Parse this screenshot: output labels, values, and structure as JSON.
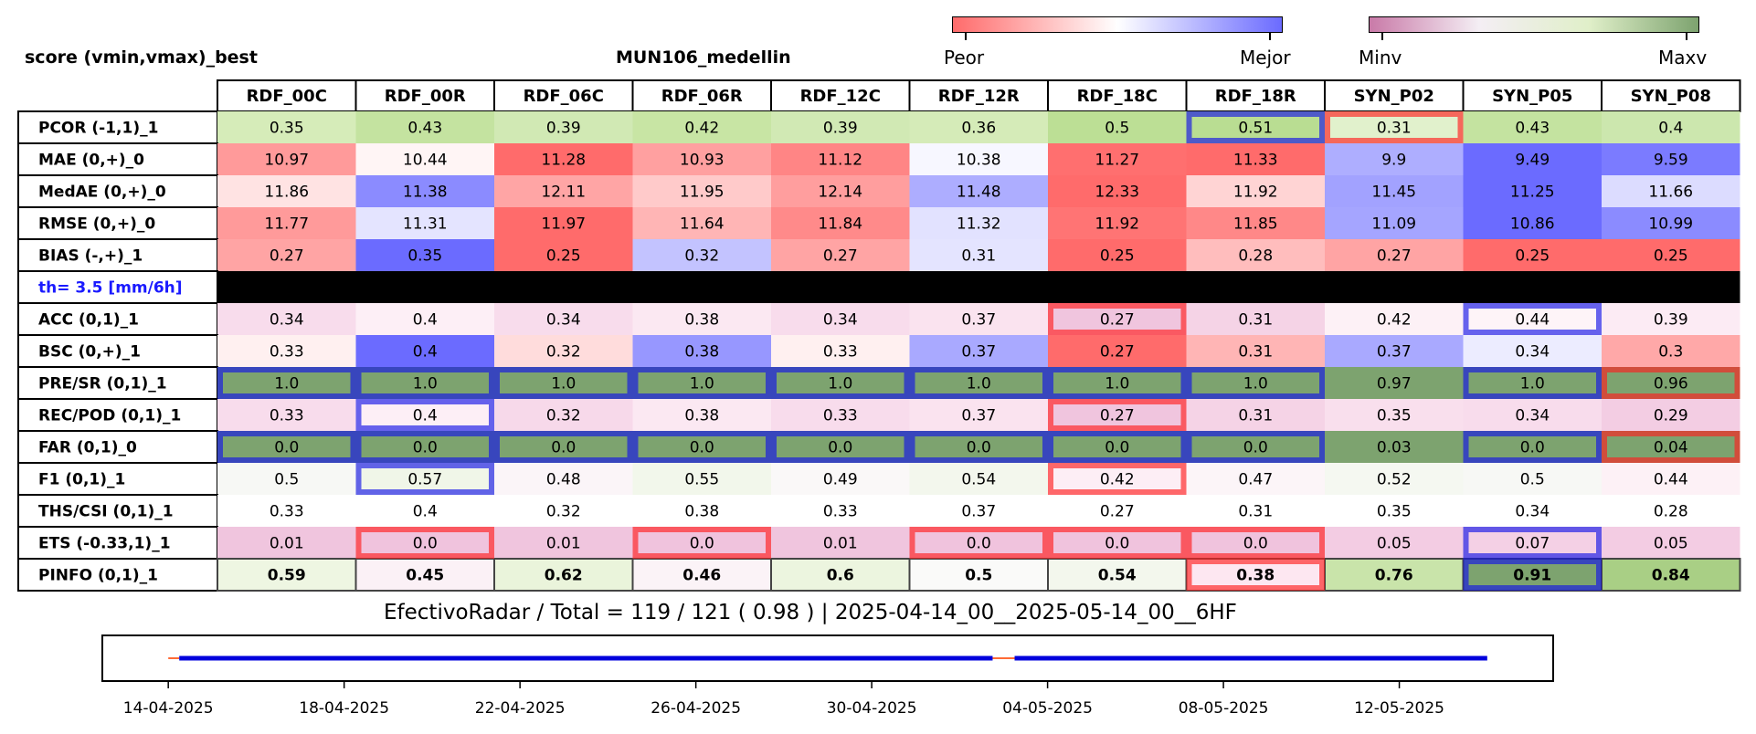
{
  "header": {
    "left_title": "score (vmin,vmax)_best",
    "center_title": "MUN106_medellin"
  },
  "colorbars": [
    {
      "left_label": "Peor",
      "right_label": "Mejor",
      "colors": [
        "#ff6b6b",
        "#ffffff",
        "#6b6bff"
      ]
    },
    {
      "left_label": "Minv",
      "right_label": "Maxv",
      "colors": [
        "#c97aa8",
        "#f4eef4",
        "#e0efc9",
        "#7da36f"
      ]
    }
  ],
  "chart_data": {
    "type": "table",
    "columns": [
      "RDF_00C",
      "RDF_00R",
      "RDF_06C",
      "RDF_06R",
      "RDF_12C",
      "RDF_12R",
      "RDF_18C",
      "RDF_18R",
      "SYN_P02",
      "SYN_P05",
      "SYN_P08"
    ],
    "rows": [
      {
        "label": "PCOR (-1,1)_1",
        "values": [
          "0.35",
          "0.43",
          "0.39",
          "0.42",
          "0.39",
          "0.36",
          "0.5",
          "0.51",
          "0.31",
          "0.43",
          "0.4"
        ],
        "colors": [
          "#d6ecb9",
          "#c4e3a0",
          "#d1e9b4",
          "#c8e5a4",
          "#d1e9b4",
          "#d5ebb8",
          "#bcdf95",
          "#b9dd92",
          "#e1f1cc",
          "#c4e3a0",
          "#cce7ae"
        ],
        "outline": [
          "",
          "",
          "",
          "",
          "",
          "",
          "",
          "blue",
          "red",
          "",
          ""
        ]
      },
      {
        "label": "MAE (0,+)_0",
        "values": [
          "10.97",
          "10.44",
          "11.28",
          "10.93",
          "11.12",
          "10.38",
          "11.27",
          "11.33",
          "9.9",
          "9.49",
          "9.59"
        ],
        "colors": [
          "#ff9a9a",
          "#fff5f5",
          "#ff6b6b",
          "#ffa0a0",
          "#ff8585",
          "#f7f7ff",
          "#ff6f6f",
          "#ff6b6b",
          "#aeaeff",
          "#6b6bff",
          "#7b7bff"
        ],
        "outline": [
          "",
          "",
          "",
          "",
          "",
          "",
          "",
          "",
          "",
          "",
          ""
        ]
      },
      {
        "label": "MedAE (0,+)_0",
        "values": [
          "11.86",
          "11.38",
          "12.11",
          "11.95",
          "12.14",
          "11.48",
          "12.33",
          "11.92",
          "11.45",
          "11.25",
          "11.66"
        ],
        "colors": [
          "#ffe3e3",
          "#8b8bff",
          "#ffa5a5",
          "#ffcaca",
          "#ff9e9e",
          "#adadff",
          "#ff6b6b",
          "#ffd4d4",
          "#a2a2ff",
          "#6b6bff",
          "#dcdcff"
        ],
        "outline": [
          "",
          "",
          "",
          "",
          "",
          "",
          "",
          "",
          "",
          "",
          ""
        ]
      },
      {
        "label": "RMSE (0,+)_0",
        "values": [
          "11.77",
          "11.31",
          "11.97",
          "11.64",
          "11.84",
          "11.32",
          "11.92",
          "11.85",
          "11.09",
          "10.86",
          "10.99"
        ],
        "colors": [
          "#ff9a9a",
          "#e4e4ff",
          "#ff6b6b",
          "#ffb5b5",
          "#ff8a8a",
          "#e2e2ff",
          "#ff7474",
          "#ff8888",
          "#a5a5ff",
          "#6b6bff",
          "#8b8bff"
        ],
        "outline": [
          "",
          "",
          "",
          "",
          "",
          "",
          "",
          "",
          "",
          "",
          ""
        ]
      },
      {
        "label": "BIAS (-,+)_1",
        "values": [
          "0.27",
          "0.35",
          "0.25",
          "0.32",
          "0.27",
          "0.31",
          "0.25",
          "0.28",
          "0.27",
          "0.25",
          "0.25"
        ],
        "colors": [
          "#ffa4a4",
          "#6b6bff",
          "#ff6b6b",
          "#c3c3ff",
          "#ffa4a4",
          "#e4e4ff",
          "#ff6b6b",
          "#ffbdbd",
          "#ffa4a4",
          "#ff6b6b",
          "#ff6b6b"
        ],
        "outline": [
          "",
          "",
          "",
          "",
          "",
          "",
          "",
          "",
          "",
          "",
          ""
        ]
      },
      {
        "label": "th= 3.5 [mm/6h]",
        "separator": true,
        "values": [],
        "colors": [],
        "outline": []
      },
      {
        "label": "ACC (0,1)_1",
        "values": [
          "0.34",
          "0.4",
          "0.34",
          "0.38",
          "0.34",
          "0.37",
          "0.27",
          "0.31",
          "0.42",
          "0.44",
          "0.39"
        ],
        "colors": [
          "#f8dcec",
          "#fdeff6",
          "#f8dcec",
          "#fbe8f2",
          "#f8dcec",
          "#fae3ef",
          "#f0c5de",
          "#f5d3e6",
          "#fdf1f6",
          "#fef4f8",
          "#fcebf4"
        ],
        "outline": [
          "",
          "",
          "",
          "",
          "",
          "",
          "red",
          "",
          "",
          "blue",
          ""
        ]
      },
      {
        "label": "BSC (0,+)_1",
        "values": [
          "0.33",
          "0.4",
          "0.32",
          "0.38",
          "0.33",
          "0.37",
          "0.27",
          "0.31",
          "0.37",
          "0.34",
          "0.3"
        ],
        "colors": [
          "#fff0f0",
          "#6b6bff",
          "#ffdcdc",
          "#9797ff",
          "#fff0f0",
          "#a9a9ff",
          "#ff6b6b",
          "#ffb5b5",
          "#a9a9ff",
          "#ececff",
          "#ffa8a8"
        ],
        "outline": [
          "",
          "",
          "",
          "",
          "",
          "",
          "",
          "",
          "",
          "",
          ""
        ]
      },
      {
        "label": "PRE/SR (0,1)_1",
        "values": [
          "1.0",
          "1.0",
          "1.0",
          "1.0",
          "1.0",
          "1.0",
          "1.0",
          "1.0",
          "0.97",
          "1.0",
          "0.96"
        ],
        "colors": [
          "#7da36f",
          "#7da36f",
          "#7da36f",
          "#7da36f",
          "#7da36f",
          "#7da36f",
          "#7da36f",
          "#7da36f",
          "#7da36f",
          "#7da36f",
          "#7da36f"
        ],
        "outline": [
          "blue",
          "blue",
          "blue",
          "blue",
          "blue",
          "blue",
          "blue",
          "blue",
          "",
          "blue",
          "red"
        ]
      },
      {
        "label": "REC/POD (0,1)_1",
        "values": [
          "0.33",
          "0.4",
          "0.32",
          "0.38",
          "0.33",
          "0.37",
          "0.27",
          "0.31",
          "0.35",
          "0.34",
          "0.29"
        ],
        "colors": [
          "#f8dcec",
          "#fdeff6",
          "#f7d9ea",
          "#fbe8f2",
          "#f8dcec",
          "#fae3ef",
          "#f0c5de",
          "#f5d3e6",
          "#f9dfed",
          "#f8dcec",
          "#f3cde3"
        ],
        "outline": [
          "",
          "blue",
          "",
          "",
          "",
          "",
          "red",
          "",
          "",
          "",
          ""
        ]
      },
      {
        "label": "FAR (0,1)_0",
        "values": [
          "0.0",
          "0.0",
          "0.0",
          "0.0",
          "0.0",
          "0.0",
          "0.0",
          "0.0",
          "0.03",
          "0.0",
          "0.04"
        ],
        "colors": [
          "#7da36f",
          "#7da36f",
          "#7da36f",
          "#7da36f",
          "#7da36f",
          "#7da36f",
          "#7da36f",
          "#7da36f",
          "#7da36f",
          "#7da36f",
          "#7da36f"
        ],
        "outline": [
          "blue",
          "blue",
          "blue",
          "blue",
          "blue",
          "blue",
          "blue",
          "blue",
          "",
          "blue",
          "red"
        ]
      },
      {
        "label": "F1 (0,1)_1",
        "values": [
          "0.5",
          "0.57",
          "0.48",
          "0.55",
          "0.49",
          "0.54",
          "0.42",
          "0.47",
          "0.52",
          "0.5",
          "0.44"
        ],
        "colors": [
          "#f7f8f5",
          "#f0f6e8",
          "#fbf5f8",
          "#f2f7eb",
          "#faf8f8",
          "#f3f7ed",
          "#fdeef5",
          "#fcf5f8",
          "#f5f8f1",
          "#f7f8f5",
          "#fdf1f6"
        ],
        "outline": [
          "",
          "blue",
          "",
          "",
          "",
          "",
          "red",
          "",
          "",
          "",
          ""
        ]
      },
      {
        "label": "THS/CSI (0,1)_1",
        "values": [
          "0.33",
          "0.4",
          "0.32",
          "0.38",
          "0.33",
          "0.37",
          "0.27",
          "0.31",
          "0.35",
          "0.34",
          "0.28"
        ],
        "colors": [
          "#ffffff",
          "#ffffff",
          "#ffffff",
          "#ffffff",
          "#ffffff",
          "#ffffff",
          "#ffffff",
          "#ffffff",
          "#ffffff",
          "#ffffff",
          "#ffffff"
        ],
        "outline": [
          "",
          "",
          "",
          "",
          "",
          "",
          "",
          "",
          "",
          "",
          ""
        ]
      },
      {
        "label": "ETS (-0.33,1)_1",
        "values": [
          "0.01",
          "0.0",
          "0.01",
          "0.0",
          "0.01",
          "0.0",
          "0.0",
          "0.0",
          "0.05",
          "0.07",
          "0.05"
        ],
        "colors": [
          "#f0c5de",
          "#f0c3dd",
          "#f0c5de",
          "#f0c3dd",
          "#f0c5de",
          "#f0c3dd",
          "#f0c3dd",
          "#f0c3dd",
          "#f3cce3",
          "#f4d0e5",
          "#f3cce3"
        ],
        "outline": [
          "",
          "red",
          "",
          "red",
          "",
          "red",
          "red",
          "red",
          "",
          "blue",
          ""
        ]
      },
      {
        "label": "PINFO (0,1)_1",
        "bold": true,
        "values": [
          "0.59",
          "0.45",
          "0.62",
          "0.46",
          "0.6",
          "0.5",
          "0.54",
          "0.38",
          "0.76",
          "0.91",
          "0.84"
        ],
        "colors": [
          "#eef6e2",
          "#fbf1f6",
          "#eaf4db",
          "#fbf3f7",
          "#ecf5df",
          "#fafaf9",
          "#f3f7ed",
          "#fde7f1",
          "#c9e4aa",
          "#7da36f",
          "#a9cf85"
        ],
        "outline": [
          "",
          "",
          "",
          "",
          "",
          "",
          "",
          "red",
          "",
          "blue",
          ""
        ]
      }
    ],
    "footer": "EfectivoRadar / Total  =  119 / 121 ( 0.98 ) | 2025-04-14_00__2025-05-14_00__6HF",
    "timeline": {
      "x_tick_labels": [
        "14-04-2025",
        "18-04-2025",
        "22-04-2025",
        "26-04-2025",
        "30-04-2025",
        "04-05-2025",
        "08-05-2025",
        "12-05-2025"
      ],
      "x_ticks_day_offsets": [
        0,
        4,
        8,
        12,
        16,
        20,
        24,
        28
      ],
      "xlim_day_offsets": [
        -1.5,
        31.5
      ],
      "segments": [
        {
          "start_day": 0.25,
          "end_day": 18.75,
          "color": "#0000dd"
        },
        {
          "start_day": 19.25,
          "end_day": 30.0,
          "color": "#0000dd"
        }
      ],
      "gaps": [
        {
          "start_day": 0.0,
          "end_day": 0.25,
          "color": "#ff6b35"
        },
        {
          "start_day": 18.75,
          "end_day": 19.25,
          "color": "#ff6b35"
        }
      ]
    }
  }
}
